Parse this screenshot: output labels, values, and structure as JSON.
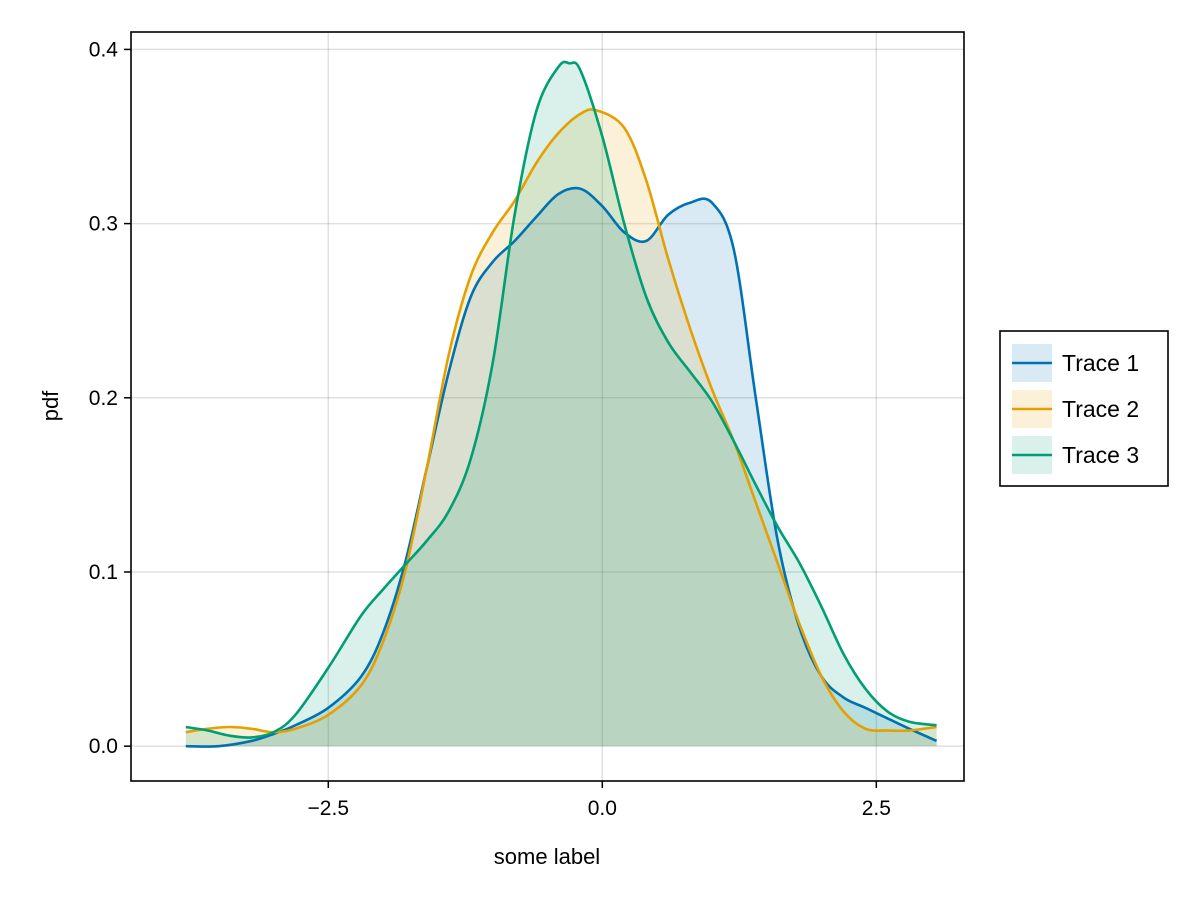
{
  "chart_data": {
    "type": "area",
    "title": "",
    "xlabel": "some label",
    "ylabel": "pdf",
    "xlim": [
      -4.3,
      3.3
    ],
    "ylim": [
      -0.02,
      0.41
    ],
    "xticks": [
      -2.5,
      0.0,
      2.5
    ],
    "xtick_labels": [
      "−2.5",
      "0.0",
      "2.5"
    ],
    "yticks": [
      0.0,
      0.1,
      0.2,
      0.3,
      0.4
    ],
    "ytick_labels": [
      "0.0",
      "0.1",
      "0.2",
      "0.3",
      "0.4"
    ],
    "grid": true,
    "legend_position": "right-center",
    "fill_opacity": 0.15,
    "series": [
      {
        "name": "Trace 1",
        "color": "#0072B2",
        "x": [
          -3.8,
          -3.5,
          -3.2,
          -3.0,
          -2.8,
          -2.5,
          -2.2,
          -2.0,
          -1.8,
          -1.6,
          -1.4,
          -1.2,
          -1.0,
          -0.8,
          -0.6,
          -0.4,
          -0.2,
          0.0,
          0.2,
          0.4,
          0.6,
          0.8,
          1.0,
          1.2,
          1.4,
          1.6,
          1.8,
          2.0,
          2.2,
          2.4,
          2.6,
          2.8,
          3.05
        ],
        "y": [
          0.0,
          0.0,
          0.003,
          0.007,
          0.012,
          0.022,
          0.04,
          0.065,
          0.105,
          0.16,
          0.215,
          0.258,
          0.278,
          0.29,
          0.304,
          0.317,
          0.32,
          0.31,
          0.295,
          0.29,
          0.305,
          0.312,
          0.312,
          0.285,
          0.2,
          0.118,
          0.068,
          0.04,
          0.028,
          0.022,
          0.016,
          0.01,
          0.003
        ]
      },
      {
        "name": "Trace 2",
        "color": "#E69F00",
        "x": [
          -3.8,
          -3.6,
          -3.4,
          -3.2,
          -3.0,
          -2.8,
          -2.5,
          -2.2,
          -2.0,
          -1.8,
          -1.6,
          -1.4,
          -1.2,
          -1.0,
          -0.8,
          -0.6,
          -0.4,
          -0.2,
          -0.05,
          0.2,
          0.4,
          0.6,
          0.8,
          1.0,
          1.2,
          1.4,
          1.6,
          1.8,
          2.0,
          2.2,
          2.4,
          2.6,
          2.8,
          3.05
        ],
        "y": [
          0.008,
          0.01,
          0.011,
          0.01,
          0.008,
          0.01,
          0.018,
          0.035,
          0.06,
          0.1,
          0.16,
          0.225,
          0.27,
          0.295,
          0.313,
          0.335,
          0.352,
          0.363,
          0.365,
          0.355,
          0.325,
          0.28,
          0.24,
          0.205,
          0.175,
          0.14,
          0.105,
          0.07,
          0.04,
          0.02,
          0.01,
          0.009,
          0.009,
          0.011
        ]
      },
      {
        "name": "Trace 3",
        "color": "#009E73",
        "x": [
          -3.8,
          -3.6,
          -3.4,
          -3.2,
          -3.0,
          -2.8,
          -2.5,
          -2.2,
          -2.0,
          -1.8,
          -1.6,
          -1.4,
          -1.2,
          -1.0,
          -0.8,
          -0.6,
          -0.4,
          -0.3,
          -0.2,
          0.0,
          0.2,
          0.4,
          0.6,
          0.8,
          1.0,
          1.2,
          1.4,
          1.6,
          1.8,
          2.0,
          2.2,
          2.4,
          2.6,
          2.8,
          3.05
        ],
        "y": [
          0.011,
          0.009,
          0.006,
          0.005,
          0.008,
          0.018,
          0.045,
          0.075,
          0.09,
          0.104,
          0.118,
          0.135,
          0.165,
          0.22,
          0.305,
          0.365,
          0.39,
          0.392,
          0.388,
          0.35,
          0.3,
          0.258,
          0.232,
          0.215,
          0.198,
          0.175,
          0.15,
          0.126,
          0.105,
          0.08,
          0.053,
          0.033,
          0.02,
          0.014,
          0.012
        ]
      }
    ]
  }
}
